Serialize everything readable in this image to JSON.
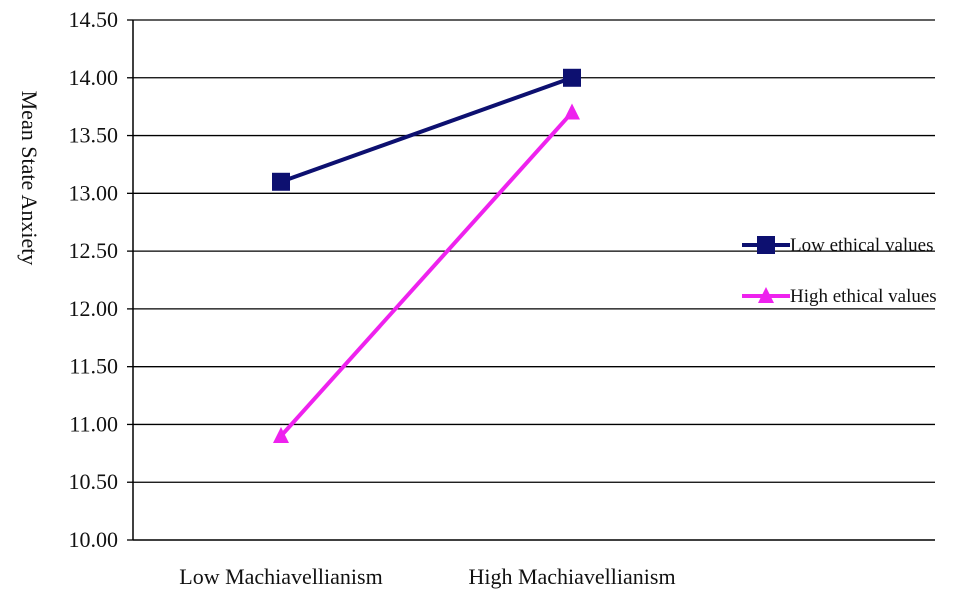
{
  "chart_data": {
    "type": "line",
    "title": "",
    "xlabel": "",
    "ylabel": "Mean State Anxiety",
    "categories": [
      "Low Machiavellianism",
      "High Machiavellianism"
    ],
    "y_tick_labels": [
      "10.00",
      "10.50",
      "11.00",
      "11.50",
      "12.00",
      "12.50",
      "13.00",
      "13.50",
      "14.00",
      "14.50"
    ],
    "ylim": [
      10.0,
      14.5
    ],
    "grid": "horizontal",
    "legend_position": "right",
    "series": [
      {
        "name": "Low ethical values",
        "values": [
          13.1,
          14.0
        ],
        "color": "#0d1070",
        "marker": "square"
      },
      {
        "name": "High ethical values",
        "values": [
          10.9,
          13.7
        ],
        "color": "#ee22ee",
        "marker": "triangle"
      }
    ]
  }
}
